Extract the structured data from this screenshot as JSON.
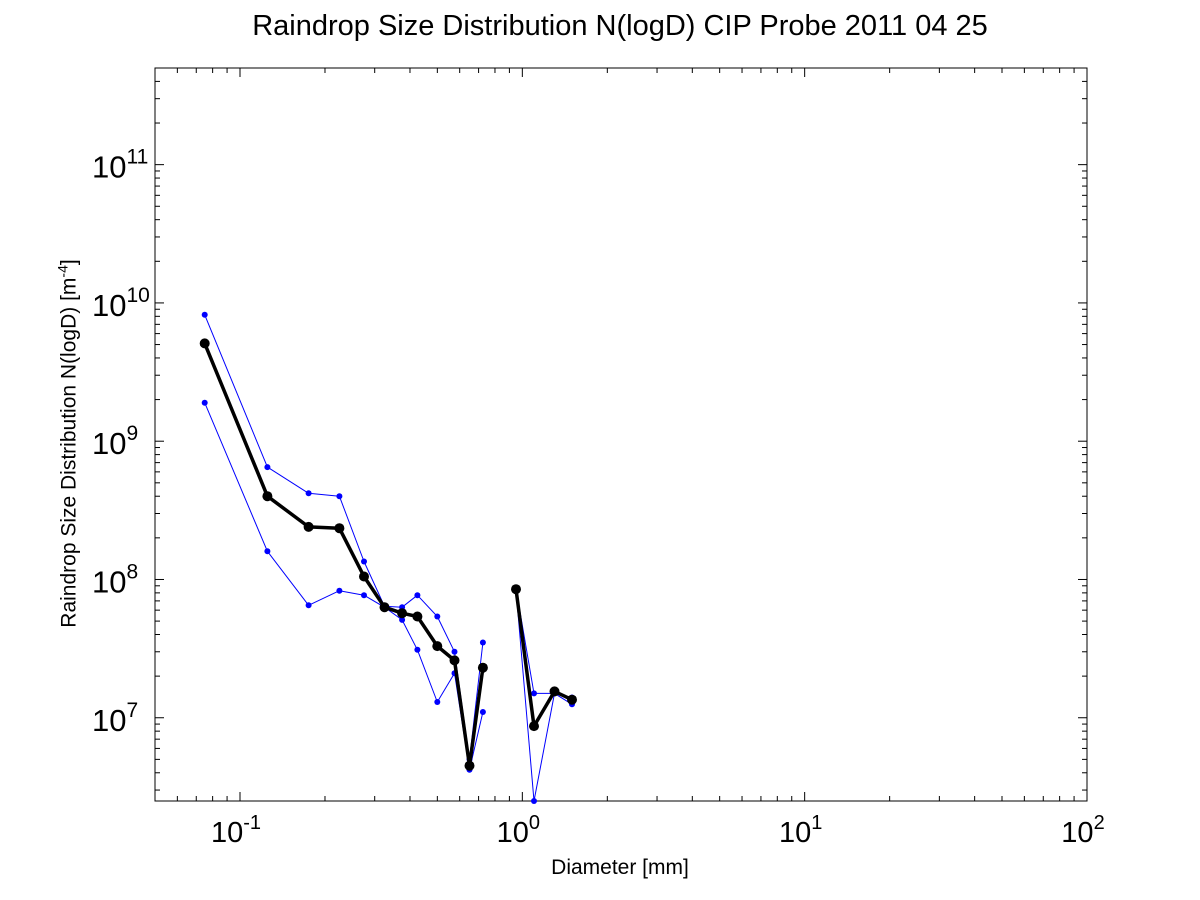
{
  "chart_data": {
    "type": "line",
    "title": "Raindrop Size Distribution N(logD) CIP Probe 2011 04 25",
    "xlabel": "Diameter [mm]",
    "ylabel": {
      "text": "Raindrop Size Distribution N(logD) [m",
      "superscript": "-4",
      "suffix": "]"
    },
    "x_scale": "log",
    "y_scale": "log",
    "xlim": [
      0.05,
      100
    ],
    "ylim": [
      2500000,
      500000000000
    ],
    "grid": false,
    "legend": "none",
    "x_ticks": [
      {
        "value": 0.1,
        "base": "10",
        "exp": "-1"
      },
      {
        "value": 1,
        "base": "10",
        "exp": "0"
      },
      {
        "value": 10,
        "base": "10",
        "exp": "1"
      },
      {
        "value": 100,
        "base": "10",
        "exp": "2"
      }
    ],
    "y_ticks": [
      {
        "value": 10000000,
        "base": "10",
        "exp": "7"
      },
      {
        "value": 100000000,
        "base": "10",
        "exp": "8"
      },
      {
        "value": 1000000000,
        "base": "10",
        "exp": "9"
      },
      {
        "value": 10000000000,
        "base": "10",
        "exp": "10"
      },
      {
        "value": 100000000000,
        "base": "10",
        "exp": "11"
      }
    ],
    "series": [
      {
        "style": "mean",
        "color": "#000000",
        "segments": [
          [
            [
              0.075,
              5100000000.0
            ],
            [
              0.125,
              400000000.0
            ],
            [
              0.175,
              240000000.0
            ],
            [
              0.225,
              235000000.0
            ],
            [
              0.275,
              105000000.0
            ],
            [
              0.325,
              63000000.0
            ],
            [
              0.375,
              57000000.0
            ],
            [
              0.425,
              54000000.0
            ],
            [
              0.5,
              33000000.0
            ],
            [
              0.575,
              26000000.0
            ],
            [
              0.65,
              4500000.0
            ],
            [
              0.725,
              23000000.0
            ]
          ],
          [
            [
              0.95,
              85000000.0
            ],
            [
              1.1,
              8700000.0
            ],
            [
              1.3,
              15500000.0
            ],
            [
              1.5,
              13500000.0
            ]
          ]
        ]
      },
      {
        "style": "upper",
        "color": "#0000ff",
        "segments": [
          [
            [
              0.075,
              8200000000.0
            ],
            [
              0.125,
              650000000.0
            ],
            [
              0.175,
              420000000.0
            ],
            [
              0.225,
              400000000.0
            ],
            [
              0.275,
              135000000.0
            ],
            [
              0.325,
              64000000.0
            ],
            [
              0.375,
              63000000.0
            ],
            [
              0.425,
              77000000.0
            ],
            [
              0.5,
              54000000.0
            ],
            [
              0.575,
              30000000.0
            ],
            [
              0.65,
              5000000.0
            ],
            [
              0.725,
              35000000.0
            ]
          ],
          [
            [
              0.95,
              86000000.0
            ],
            [
              1.1,
              15000000.0
            ],
            [
              1.3,
              15000000.0
            ],
            [
              1.5,
              14000000.0
            ]
          ]
        ]
      },
      {
        "style": "lower",
        "color": "#0000ff",
        "segments": [
          [
            [
              0.075,
              1900000000.0
            ],
            [
              0.125,
              160000000.0
            ],
            [
              0.175,
              65000000.0
            ],
            [
              0.225,
              83000000.0
            ],
            [
              0.275,
              77000000.0
            ],
            [
              0.325,
              63000000.0
            ],
            [
              0.375,
              51000000.0
            ],
            [
              0.425,
              31000000.0
            ],
            [
              0.5,
              13000000.0
            ],
            [
              0.575,
              21000000.0
            ],
            [
              0.65,
              4200000.0
            ],
            [
              0.725,
              11000000.0
            ]
          ],
          [
            [
              0.95,
              84000000.0
            ],
            [
              1.1,
              2500000.0
            ],
            [
              1.3,
              15000000.0
            ],
            [
              1.5,
              12500000.0
            ]
          ]
        ]
      }
    ]
  }
}
